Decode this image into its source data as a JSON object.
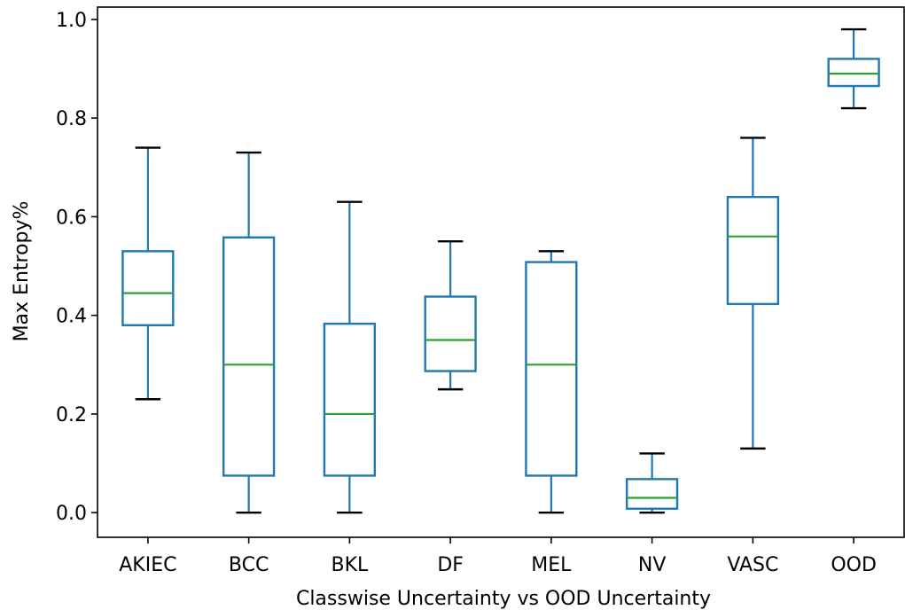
{
  "chart_data": {
    "type": "box",
    "xlabel": "Classwise Uncertainty vs OOD Uncertainty",
    "ylabel": "Max Entropy%",
    "ylim": [
      -0.05,
      1.025
    ],
    "yticks": [
      "0.0",
      "0.2",
      "0.4",
      "0.6",
      "0.8",
      "1.0"
    ],
    "grid": false,
    "colors": {
      "box": "#1f77b4",
      "median": "#2ca02c",
      "caps": "#000000"
    },
    "categories": [
      "AKIEC",
      "BCC",
      "BKL",
      "DF",
      "MEL",
      "NV",
      "VASC",
      "OOD"
    ],
    "boxes": [
      {
        "label": "AKIEC",
        "whisker_low": 0.23,
        "q1": 0.38,
        "median": 0.445,
        "q3": 0.53,
        "whisker_high": 0.74
      },
      {
        "label": "BCC",
        "whisker_low": 0.0,
        "q1": 0.075,
        "median": 0.3,
        "q3": 0.558,
        "whisker_high": 0.73
      },
      {
        "label": "BKL",
        "whisker_low": 0.0,
        "q1": 0.075,
        "median": 0.2,
        "q3": 0.383,
        "whisker_high": 0.63
      },
      {
        "label": "DF",
        "whisker_low": 0.25,
        "q1": 0.287,
        "median": 0.35,
        "q3": 0.438,
        "whisker_high": 0.55
      },
      {
        "label": "MEL",
        "whisker_low": 0.0,
        "q1": 0.075,
        "median": 0.3,
        "q3": 0.508,
        "whisker_high": 0.53
      },
      {
        "label": "NV",
        "whisker_low": 0.0,
        "q1": 0.008,
        "median": 0.03,
        "q3": 0.068,
        "whisker_high": 0.12
      },
      {
        "label": "VASC",
        "whisker_low": 0.13,
        "q1": 0.423,
        "median": 0.56,
        "q3": 0.64,
        "whisker_high": 0.76
      },
      {
        "label": "OOD",
        "whisker_low": 0.82,
        "q1": 0.865,
        "median": 0.89,
        "q3": 0.92,
        "whisker_high": 0.98
      }
    ]
  }
}
